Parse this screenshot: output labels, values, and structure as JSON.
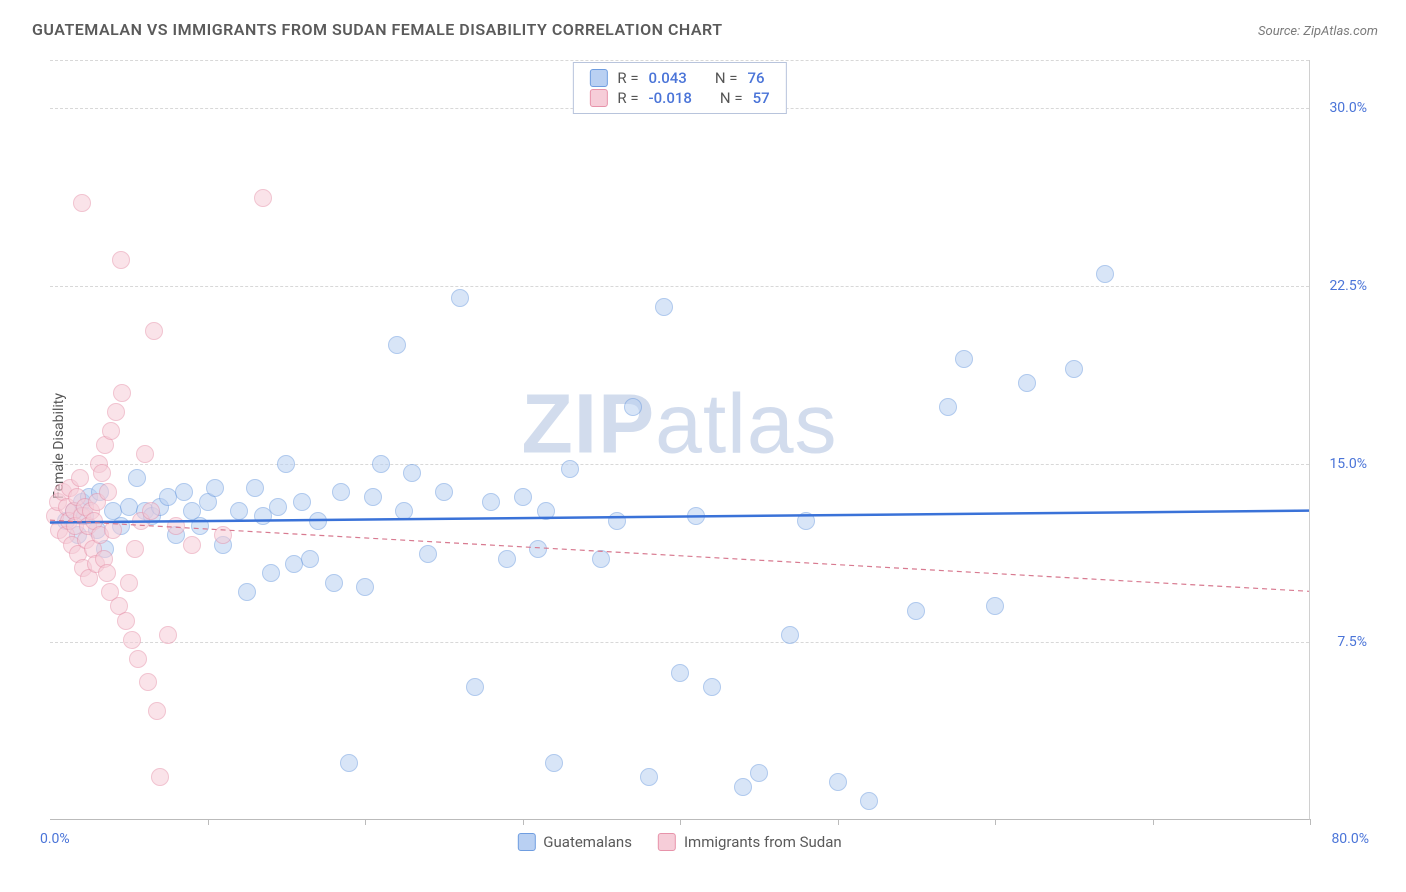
{
  "title": "GUATEMALAN VS IMMIGRANTS FROM SUDAN FEMALE DISABILITY CORRELATION CHART",
  "source": "Source: ZipAtlas.com",
  "y_axis_label": "Female Disability",
  "watermark_bold": "ZIP",
  "watermark_rest": "atlas",
  "chart": {
    "type": "scatter",
    "background_color": "#ffffff",
    "grid_color": "#d8d8d8",
    "xlim": [
      0,
      80
    ],
    "ylim": [
      0,
      32
    ],
    "x_tick_step": 10,
    "y_ticks": [
      7.5,
      15.0,
      22.5,
      30.0
    ],
    "y_tick_labels": [
      "7.5%",
      "15.0%",
      "22.5%",
      "30.0%"
    ],
    "x_min_label": "0.0%",
    "x_max_label": "80.0%",
    "marker_radius": 9,
    "axis_label_color": "#4a74d8",
    "text_color": "#5a5a5a"
  },
  "series": [
    {
      "name": "Guatemalans",
      "color_fill": "#b9d0f2",
      "color_stroke": "#6f9de0",
      "r": "0.043",
      "n": "76",
      "trend": {
        "y_at_x0": 12.5,
        "y_at_x80": 13.0,
        "stroke": "#3a72d8",
        "width": 2.5,
        "dash": ""
      },
      "points": [
        [
          1,
          12.6
        ],
        [
          1.5,
          13.0
        ],
        [
          1.8,
          12.0
        ],
        [
          2,
          13.4
        ],
        [
          2.2,
          12.8
        ],
        [
          2.5,
          13.6
        ],
        [
          3,
          12.2
        ],
        [
          3.2,
          13.8
        ],
        [
          3.5,
          11.4
        ],
        [
          4,
          13.0
        ],
        [
          4.5,
          12.4
        ],
        [
          5,
          13.2
        ],
        [
          5.5,
          14.4
        ],
        [
          6,
          13.0
        ],
        [
          6.5,
          12.8
        ],
        [
          7,
          13.2
        ],
        [
          7.5,
          13.6
        ],
        [
          8,
          12.0
        ],
        [
          8.5,
          13.8
        ],
        [
          9,
          13.0
        ],
        [
          9.5,
          12.4
        ],
        [
          10,
          13.4
        ],
        [
          10.5,
          14.0
        ],
        [
          11,
          11.6
        ],
        [
          12,
          13.0
        ],
        [
          12.5,
          9.6
        ],
        [
          13,
          14.0
        ],
        [
          13.5,
          12.8
        ],
        [
          14,
          10.4
        ],
        [
          14.5,
          13.2
        ],
        [
          15,
          15.0
        ],
        [
          15.5,
          10.8
        ],
        [
          16,
          13.4
        ],
        [
          16.5,
          11.0
        ],
        [
          17,
          12.6
        ],
        [
          18,
          10.0
        ],
        [
          18.5,
          13.8
        ],
        [
          19,
          2.4
        ],
        [
          20,
          9.8
        ],
        [
          20.5,
          13.6
        ],
        [
          21,
          15.0
        ],
        [
          22,
          20.0
        ],
        [
          22.5,
          13.0
        ],
        [
          23,
          14.6
        ],
        [
          24,
          11.2
        ],
        [
          25,
          13.8
        ],
        [
          26,
          22.0
        ],
        [
          27,
          5.6
        ],
        [
          28,
          13.4
        ],
        [
          29,
          11.0
        ],
        [
          30,
          13.6
        ],
        [
          31,
          11.4
        ],
        [
          31.5,
          13.0
        ],
        [
          32,
          2.4
        ],
        [
          33,
          14.8
        ],
        [
          35,
          11.0
        ],
        [
          36,
          12.6
        ],
        [
          37,
          17.4
        ],
        [
          38,
          1.8
        ],
        [
          39,
          21.6
        ],
        [
          40,
          6.2
        ],
        [
          41,
          12.8
        ],
        [
          42,
          5.6
        ],
        [
          44,
          1.4
        ],
        [
          45,
          2.0
        ],
        [
          47,
          7.8
        ],
        [
          48,
          12.6
        ],
        [
          50,
          1.6
        ],
        [
          52,
          0.8
        ],
        [
          55,
          8.8
        ],
        [
          57,
          17.4
        ],
        [
          58,
          19.4
        ],
        [
          60,
          9.0
        ],
        [
          62,
          18.4
        ],
        [
          65,
          19.0
        ],
        [
          67,
          23.0
        ]
      ]
    },
    {
      "name": "Immigrants from Sudan",
      "color_fill": "#f6cdd8",
      "color_stroke": "#e793aa",
      "r": "-0.018",
      "n": "57",
      "trend": {
        "y_at_x0": 12.6,
        "y_at_x80": 9.6,
        "stroke": "#d87a90",
        "width": 1.2,
        "dash": "5 4"
      },
      "points": [
        [
          0.3,
          12.8
        ],
        [
          0.5,
          13.4
        ],
        [
          0.6,
          12.2
        ],
        [
          0.8,
          13.8
        ],
        [
          1.0,
          12.0
        ],
        [
          1.1,
          13.2
        ],
        [
          1.2,
          12.6
        ],
        [
          1.3,
          14.0
        ],
        [
          1.4,
          11.6
        ],
        [
          1.5,
          13.0
        ],
        [
          1.6,
          12.4
        ],
        [
          1.7,
          13.6
        ],
        [
          1.8,
          11.2
        ],
        [
          1.9,
          14.4
        ],
        [
          2.0,
          12.8
        ],
        [
          2.1,
          10.6
        ],
        [
          2.2,
          13.2
        ],
        [
          2.3,
          11.8
        ],
        [
          2.4,
          12.4
        ],
        [
          2.5,
          10.2
        ],
        [
          2.6,
          13.0
        ],
        [
          2.7,
          11.4
        ],
        [
          2.8,
          12.6
        ],
        [
          2.9,
          10.8
        ],
        [
          3.0,
          13.4
        ],
        [
          3.1,
          15.0
        ],
        [
          3.2,
          12.0
        ],
        [
          3.3,
          14.6
        ],
        [
          3.4,
          11.0
        ],
        [
          3.5,
          15.8
        ],
        [
          3.6,
          10.4
        ],
        [
          3.7,
          13.8
        ],
        [
          3.8,
          9.6
        ],
        [
          3.9,
          16.4
        ],
        [
          4.0,
          12.2
        ],
        [
          4.2,
          17.2
        ],
        [
          4.4,
          9.0
        ],
        [
          4.6,
          18.0
        ],
        [
          4.8,
          8.4
        ],
        [
          5.0,
          10.0
        ],
        [
          5.2,
          7.6
        ],
        [
          5.4,
          11.4
        ],
        [
          5.6,
          6.8
        ],
        [
          5.8,
          12.6
        ],
        [
          6.0,
          15.4
        ],
        [
          6.2,
          5.8
        ],
        [
          6.4,
          13.0
        ],
        [
          6.6,
          20.6
        ],
        [
          6.8,
          4.6
        ],
        [
          7.0,
          1.8
        ],
        [
          2.0,
          26.0
        ],
        [
          4.5,
          23.6
        ],
        [
          7.5,
          7.8
        ],
        [
          8.0,
          12.4
        ],
        [
          9.0,
          11.6
        ],
        [
          11.0,
          12.0
        ],
        [
          13.5,
          26.2
        ]
      ]
    }
  ],
  "stats_labels": {
    "r": "R =",
    "n": "N ="
  },
  "legend_bottom": [
    {
      "label": "Guatemalans"
    },
    {
      "label": "Immigrants from Sudan"
    }
  ]
}
